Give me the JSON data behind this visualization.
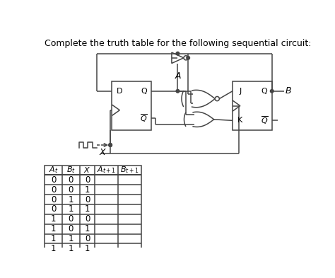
{
  "title": "Complete the truth table for the following sequential circuit:",
  "title_fontsize": 9.0,
  "bg_color": "#ffffff",
  "line_color": "#444444",
  "table": {
    "rows": [
      [
        0,
        0,
        0,
        "",
        ""
      ],
      [
        0,
        0,
        1,
        "",
        ""
      ],
      [
        0,
        1,
        0,
        "",
        ""
      ],
      [
        0,
        1,
        1,
        "",
        ""
      ],
      [
        1,
        0,
        0,
        "",
        ""
      ],
      [
        1,
        0,
        1,
        "",
        ""
      ],
      [
        1,
        1,
        0,
        "",
        ""
      ],
      [
        1,
        1,
        1,
        "",
        ""
      ]
    ]
  }
}
